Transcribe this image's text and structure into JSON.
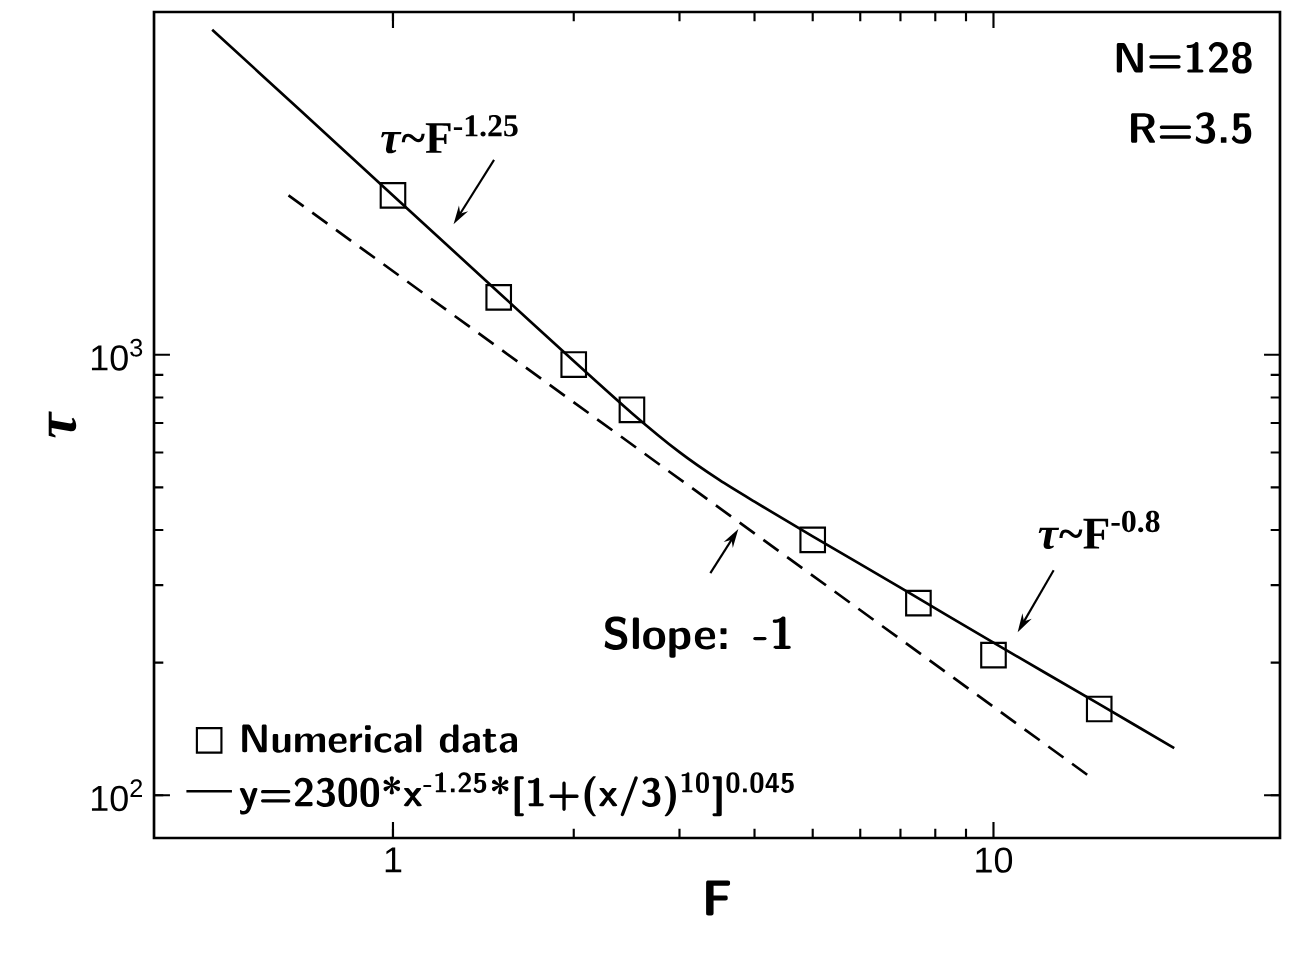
{
  "chart_data": {
    "type": "line",
    "xlabel": "F",
    "ylabel": "*τ*",
    "log": "xy",
    "xlim": [
      0.4,
      30
    ],
    "ylim": [
      80,
      6000
    ],
    "xticks": [
      1,
      10
    ],
    "yticks": [
      {
        "value": 100,
        "label": "10$^{2}$"
      },
      {
        "value": 1000,
        "label": "10$^{3}$"
      }
    ],
    "legend": "bottom left",
    "series": [
      {
        "name": "Numerical data",
        "type": "scatter",
        "marker": "square",
        "color": "#000000",
        "x": [
          1,
          1.5,
          2,
          2.5,
          5,
          7.5,
          10,
          15
        ],
        "values": [
          2300,
          1350,
          950,
          750,
          380,
          273,
          208,
          157
        ]
      },
      {
        "name": "y=2300*x$^{-1.25}$*[1+(x/3)$^{10}$]$^{0.045}$",
        "color": "#000000",
        "x": [
          0.5,
          0.7,
          1,
          1.5,
          2,
          2.5,
          3,
          3.5,
          4,
          5,
          7,
          10,
          15,
          20
        ],
        "values": [
          5470,
          3593,
          2300,
          1385,
          968,
          737,
          601,
          519,
          464,
          387,
          296,
          222,
          161,
          128
        ]
      },
      {
        "line_style": "dashed",
        "color": "#000000",
        "x": [
          0.67,
          14.5
        ],
        "values": [
          2300,
          110
        ]
      }
    ],
    "annotations": [
      "*τ*~F$^{-1.25}$",
      "*τ*~F$^{-0.8}$",
      {
        "text": "Slope: -1",
        "x": 3.76,
        "y": 402
      },
      "N=128",
      "R=3.5"
    ]
  }
}
